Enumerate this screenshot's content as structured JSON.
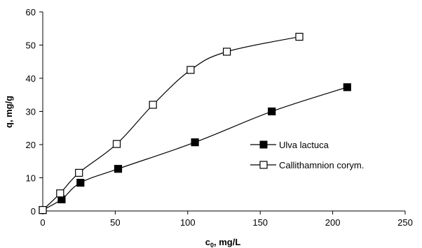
{
  "chart_data": {
    "type": "scatter",
    "title": "",
    "xlabel_main": "c",
    "xlabel_sub": "0",
    "xlabel_rest": ", mg/L",
    "ylabel": "q, mg/g",
    "xlim": [
      0,
      250
    ],
    "ylim": [
      0,
      60
    ],
    "xticks": [
      0,
      50,
      100,
      150,
      200,
      250
    ],
    "yticks": [
      0,
      10,
      20,
      30,
      40,
      50,
      60
    ],
    "grid": false,
    "legend_position": "right",
    "series": [
      {
        "name": "Ulva lactuca",
        "marker": "filled-square",
        "color": "#000000",
        "x": [
          0,
          13,
          26,
          52,
          105,
          158,
          210
        ],
        "y": [
          0.3,
          3.5,
          8.5,
          12.7,
          20.7,
          30.0,
          37.3
        ]
      },
      {
        "name": "Callithamnion corym.",
        "marker": "open-square",
        "color": "#000000",
        "x": [
          0,
          12,
          25,
          51,
          76,
          102,
          127,
          177
        ],
        "y": [
          0.3,
          5.3,
          11.5,
          20.2,
          32.0,
          42.5,
          48.0,
          52.5
        ]
      }
    ]
  }
}
